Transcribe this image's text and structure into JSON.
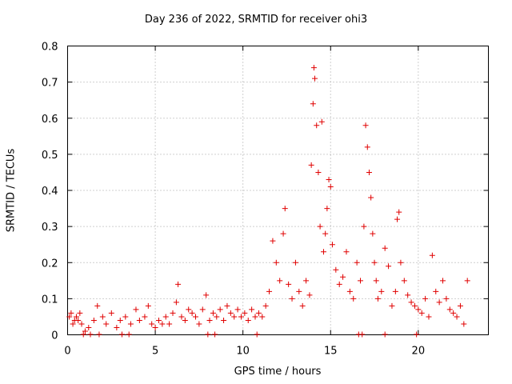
{
  "chart_data": {
    "type": "scatter",
    "title": "Day 236 of 2022, SRMTID for receiver ohi3",
    "xlabel": "GPS time / hours",
    "ylabel": "SRMTID / TECUs",
    "xlim": [
      0,
      24
    ],
    "ylim": [
      0,
      0.8
    ],
    "xticks": [
      0,
      5,
      10,
      15,
      20
    ],
    "yticks": [
      0,
      0.1,
      0.2,
      0.3,
      0.4,
      0.5,
      0.6,
      0.7,
      0.8
    ],
    "xtick_labels": [
      "0",
      "5",
      "10",
      "15",
      "20"
    ],
    "ytick_labels": [
      "0",
      "0.1",
      "0.2",
      "0.3",
      "0.4",
      "0.5",
      "0.6",
      "0.7",
      "0.8"
    ],
    "grid": true,
    "marker": "+",
    "color": "#e00000",
    "series": [
      {
        "name": "SRMTID",
        "x": [
          0.1,
          0.2,
          0.3,
          0.4,
          0.5,
          0.6,
          0.7,
          0.8,
          1.0,
          1.2,
          1.5,
          1.7,
          2.0,
          2.2,
          2.5,
          2.8,
          3.0,
          3.3,
          3.6,
          3.9,
          4.1,
          4.4,
          4.6,
          4.8,
          5.0,
          5.2,
          5.4,
          5.6,
          5.8,
          6.0,
          6.2,
          6.3,
          6.5,
          6.7,
          6.9,
          7.1,
          7.3,
          7.5,
          7.7,
          7.9,
          8.1,
          8.3,
          8.5,
          8.7,
          8.9,
          9.1,
          9.3,
          9.5,
          9.7,
          9.9,
          10.1,
          10.3,
          10.5,
          10.7,
          10.9,
          11.1,
          11.3,
          11.5,
          11.7,
          11.9,
          12.1,
          12.3,
          12.4,
          12.6,
          12.8,
          13.0,
          13.2,
          13.4,
          13.6,
          13.8,
          13.9,
          14.0,
          14.05,
          14.1,
          14.2,
          14.3,
          14.4,
          14.5,
          14.6,
          14.7,
          14.8,
          14.9,
          15.0,
          15.1,
          15.3,
          15.5,
          15.7,
          15.9,
          16.1,
          16.3,
          16.5,
          16.7,
          16.9,
          17.0,
          17.1,
          17.2,
          17.3,
          17.4,
          17.5,
          17.6,
          17.7,
          17.9,
          18.1,
          18.3,
          18.5,
          18.7,
          18.8,
          18.9,
          19.0,
          19.2,
          19.4,
          19.6,
          19.8,
          20.0,
          20.2,
          20.4,
          20.6,
          20.8,
          21.0,
          21.2,
          21.4,
          21.6,
          21.8,
          22.0,
          22.2,
          22.4,
          22.6,
          22.8,
          0.9,
          1.3,
          1.8,
          3.1,
          3.5,
          8.0,
          8.4,
          10.8,
          16.6,
          16.8,
          18.1,
          19.9
        ],
        "y": [
          0.05,
          0.06,
          0.03,
          0.04,
          0.05,
          0.04,
          0.06,
          0.03,
          0.01,
          0.02,
          0.04,
          0.08,
          0.05,
          0.03,
          0.06,
          0.02,
          0.04,
          0.05,
          0.03,
          0.07,
          0.04,
          0.05,
          0.08,
          0.03,
          0.02,
          0.04,
          0.03,
          0.05,
          0.03,
          0.06,
          0.09,
          0.14,
          0.05,
          0.04,
          0.07,
          0.06,
          0.05,
          0.03,
          0.07,
          0.11,
          0.04,
          0.06,
          0.05,
          0.07,
          0.04,
          0.08,
          0.06,
          0.05,
          0.07,
          0.05,
          0.06,
          0.04,
          0.07,
          0.05,
          0.06,
          0.05,
          0.08,
          0.12,
          0.26,
          0.2,
          0.15,
          0.28,
          0.35,
          0.14,
          0.1,
          0.2,
          0.12,
          0.08,
          0.15,
          0.11,
          0.47,
          0.64,
          0.74,
          0.71,
          0.58,
          0.45,
          0.3,
          0.59,
          0.23,
          0.28,
          0.35,
          0.43,
          0.41,
          0.25,
          0.18,
          0.14,
          0.16,
          0.23,
          0.12,
          0.1,
          0.2,
          0.15,
          0.3,
          0.58,
          0.52,
          0.45,
          0.38,
          0.28,
          0.2,
          0.15,
          0.1,
          0.12,
          0.24,
          0.19,
          0.08,
          0.12,
          0.32,
          0.34,
          0.2,
          0.15,
          0.11,
          0.09,
          0.08,
          0.07,
          0.06,
          0.1,
          0.05,
          0.22,
          0.12,
          0.09,
          0.15,
          0.1,
          0.07,
          0.06,
          0.05,
          0.08,
          0.03,
          0.15,
          0.001,
          0.001,
          0.001,
          0.001,
          0.001,
          0.001,
          0.001,
          0.001,
          0.001,
          0.001,
          0.001,
          0.001
        ]
      }
    ]
  }
}
